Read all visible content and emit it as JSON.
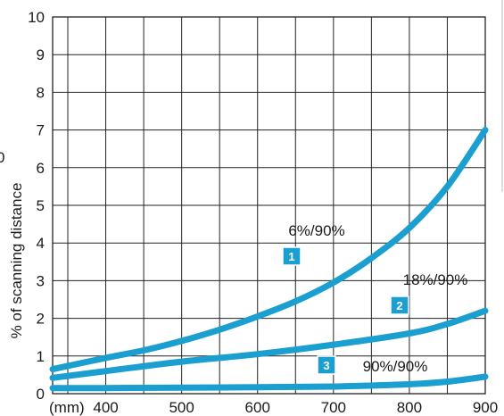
{
  "chart_data": {
    "type": "line",
    "title": "",
    "xlabel": "(mm)",
    "ylabel": "% of scanning distance",
    "xlim": [
      330,
      900
    ],
    "ylim": [
      0,
      10
    ],
    "x_ticks": [
      400,
      500,
      600,
      700,
      800,
      900
    ],
    "y_ticks": [
      0,
      1,
      2,
      3,
      4,
      5,
      6,
      7,
      8,
      9,
      10
    ],
    "grid": true,
    "line_color": "#1a9fd0",
    "series": [
      {
        "name": "6%/90%",
        "marker": "1",
        "x": [
          330,
          400,
          450,
          500,
          550,
          600,
          650,
          700,
          750,
          800,
          850,
          900
        ],
        "y": [
          0.65,
          0.95,
          1.15,
          1.4,
          1.7,
          2.05,
          2.45,
          2.95,
          3.6,
          4.4,
          5.5,
          7.0
        ]
      },
      {
        "name": "18%/90%",
        "marker": "2",
        "x": [
          330,
          400,
          500,
          600,
          700,
          800,
          850,
          900
        ],
        "y": [
          0.42,
          0.6,
          0.85,
          1.05,
          1.3,
          1.6,
          1.85,
          2.2
        ]
      },
      {
        "name": "90%/90%",
        "marker": "3",
        "x": [
          330,
          400,
          500,
          600,
          700,
          800,
          850,
          900
        ],
        "y": [
          0.15,
          0.15,
          0.16,
          0.17,
          0.19,
          0.25,
          0.32,
          0.45
        ]
      }
    ],
    "edge_fragment": "0"
  }
}
